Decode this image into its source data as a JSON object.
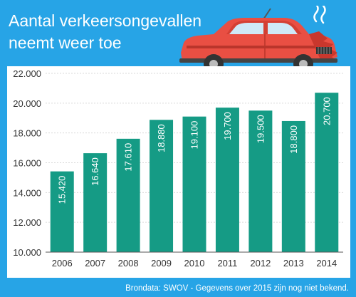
{
  "title_lines": [
    "Aantal verkeersongevallen",
    "neemt weer toe"
  ],
  "source_note": "Brondata: SWOV - Gegevens over 2015 zijn nog niet bekend.",
  "colors": {
    "background": "#27a4e6",
    "bar": "#159b85",
    "bar_label": "#ffffff",
    "car_body": "#e94f43"
  },
  "illustration": "crashed-car-icon",
  "chart_data": {
    "type": "bar",
    "title": "Aantal verkeersongevallen neemt weer toe",
    "categories": [
      "2006",
      "2007",
      "2008",
      "2009",
      "2010",
      "2011",
      "2012",
      "2013",
      "2014"
    ],
    "values": [
      15420,
      16640,
      17610,
      18880,
      19100,
      19700,
      19500,
      18800,
      20700
    ],
    "value_labels": [
      "15.420",
      "16.640",
      "17.610",
      "18.880",
      "19.100",
      "19.700",
      "19.500",
      "18.800",
      "20.700"
    ],
    "yticks": [
      10000,
      12000,
      14000,
      16000,
      18000,
      20000,
      22000
    ],
    "ytick_labels": [
      "10.000",
      "12.000",
      "14.000",
      "16.000",
      "18.000",
      "20.000",
      "22.000"
    ],
    "ylim": [
      10000,
      22000
    ],
    "grid": true,
    "legend": "none"
  }
}
